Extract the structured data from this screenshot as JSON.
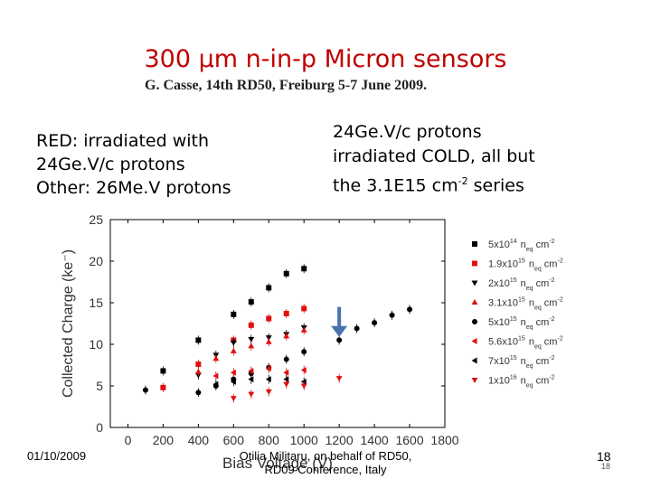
{
  "slide": {
    "title": "300 µm n-in-p Micron sensors",
    "subtitle": "G. Casse, 14th RD50, Freiburg 5-7 June 2009.",
    "left_note": [
      "RED: irradiated with",
      "24Ge.V/c protons",
      "Other: 26Me.V protons"
    ],
    "right_note": [
      "24Ge.V/c protons",
      "irradiated COLD, all but",
      "the 3.1E15 cm"
    ],
    "right_note_sup": "-2",
    "right_note_tail": " series",
    "footer": {
      "date": "01/10/2009",
      "credit_line1": "Otilia Militaru, on behalf of RD50,",
      "credit_line2": "RD09 Conference, Italy",
      "page": "18",
      "page_small": "18"
    }
  },
  "chart_data": {
    "type": "scatter",
    "xlabel": "Bias Voltage (V)",
    "ylabel": "Collected Charge (ke⁻)",
    "xlim": [
      -100,
      1800
    ],
    "ylim": [
      0,
      25
    ],
    "xticks": [
      0,
      200,
      400,
      600,
      800,
      1000,
      1200,
      1400,
      1600,
      1800
    ],
    "yticks": [
      0,
      5,
      10,
      15,
      20,
      25
    ],
    "legend_position": "right",
    "series": [
      {
        "name": "5x10",
        "mant": "14",
        "color": "#000000",
        "marker": "square",
        "x": [
          200,
          400,
          600,
          700,
          800,
          900,
          1000
        ],
        "y": [
          6.8,
          10.5,
          13.6,
          15.1,
          16.8,
          18.5,
          19.1
        ]
      },
      {
        "name": "1.9x10",
        "mant": "15",
        "color": "#e01010",
        "marker": "square",
        "x": [
          200,
          400,
          600,
          700,
          800,
          900,
          1000
        ],
        "y": [
          4.8,
          7.6,
          10.5,
          12.3,
          13.1,
          13.7,
          14.3
        ]
      },
      {
        "name": "2x10",
        "mant": "15",
        "color": "#000000",
        "marker": "triangle-down",
        "x": [
          400,
          500,
          600,
          700,
          800,
          900,
          1000
        ],
        "y": [
          6.3,
          8.7,
          10.2,
          10.6,
          10.8,
          11.2,
          12.0
        ]
      },
      {
        "name": "3.1x10",
        "mant": "15",
        "color": "#e01010",
        "marker": "triangle-up",
        "x": [
          400,
          500,
          600,
          700,
          800,
          900,
          1000
        ],
        "y": [
          6.7,
          8.3,
          9.2,
          9.8,
          10.3,
          11.0,
          11.7
        ]
      },
      {
        "name": "5x10",
        "mant": "15",
        "color": "#000000",
        "marker": "circle",
        "x": [
          100,
          400,
          500,
          600,
          700,
          800,
          900,
          1000,
          1200,
          1300,
          1400,
          1500,
          1600
        ],
        "y": [
          4.5,
          4.2,
          5.0,
          5.8,
          6.5,
          7.2,
          8.2,
          9.1,
          10.5,
          11.9,
          12.6,
          13.5,
          14.2
        ]
      },
      {
        "name": "5.6x10",
        "mant": "15",
        "color": "#e01010",
        "marker": "triangle-left",
        "x": [
          500,
          600,
          700,
          800,
          900,
          1000
        ],
        "y": [
          6.2,
          6.6,
          6.8,
          7.1,
          6.6,
          6.9
        ]
      },
      {
        "name": "7x10",
        "mant": "15",
        "color": "#000000",
        "marker": "triangle-left",
        "x": [
          500,
          600,
          700,
          800,
          900,
          1000
        ],
        "y": [
          5.2,
          5.5,
          5.8,
          5.8,
          5.8,
          5.5
        ]
      },
      {
        "name": "1x10",
        "mant": "16",
        "color": "#e01010",
        "marker": "triangle-down",
        "x": [
          600,
          700,
          800,
          900,
          1000,
          1200
        ],
        "y": [
          3.5,
          4.0,
          4.3,
          5.2,
          5.0,
          5.9
        ]
      }
    ],
    "legend_unit": "n",
    "legend_unit_sub": "eq",
    "legend_unit_tail": " cm",
    "legend_unit_sup": "-2",
    "annotation": {
      "type": "arrow",
      "x": 1200,
      "y_from": 14.5,
      "y_to": 10.9,
      "color": "#4a72b0"
    }
  }
}
